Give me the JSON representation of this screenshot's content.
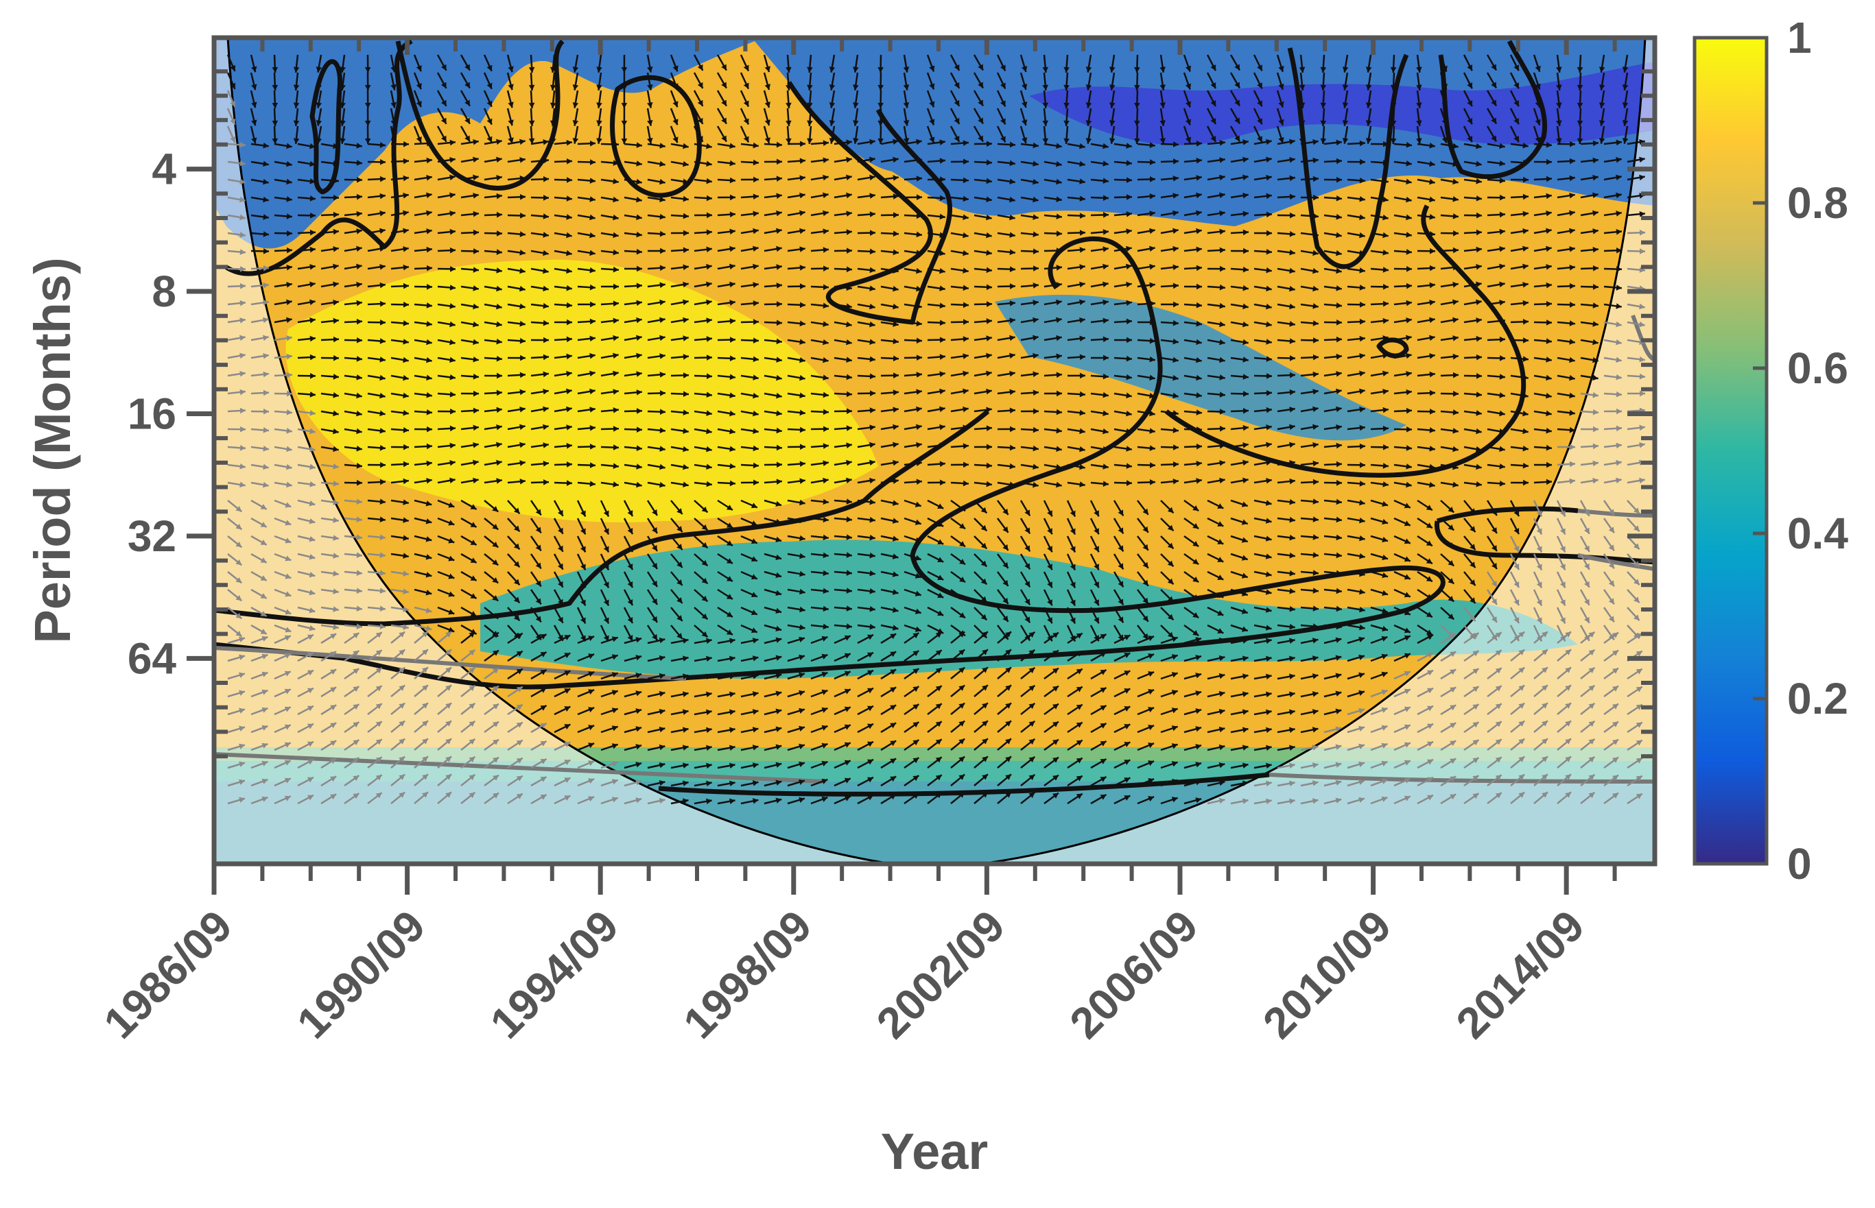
{
  "chart_data": {
    "type": "heatmap",
    "subtype": "wavelet-coherence",
    "title": "",
    "xlabel": "Year",
    "ylabel": "Period (Months)",
    "x_tick_labels": [
      "1986/09",
      "1990/09",
      "1994/09",
      "1998/09",
      "2002/09",
      "2006/09",
      "2010/09",
      "2014/09"
    ],
    "x_tick_values": [
      1986.67,
      1990.67,
      1994.67,
      1998.67,
      2002.67,
      2006.67,
      2010.67,
      2014.67
    ],
    "xlim": [
      1986.67,
      2016.5
    ],
    "y_scale": "log2",
    "y_tick_labels": [
      "4",
      "8",
      "16",
      "32",
      "64"
    ],
    "y_tick_values": [
      4,
      8,
      16,
      32,
      64
    ],
    "ylim": [
      1.9,
      205
    ],
    "y_reversed": true,
    "colorbar": {
      "ticks": [
        0,
        0.2,
        0.4,
        0.6,
        0.8,
        1
      ],
      "tick_labels": [
        "0",
        "0.2",
        "0.4",
        "0.6",
        "0.8",
        "1"
      ],
      "range": [
        0,
        1
      ],
      "colormap": "parula",
      "colors": [
        "#352a87",
        "#0f5cdd",
        "#1481d6",
        "#06a4ca",
        "#2eb7a4",
        "#87bf77",
        "#d1bb59",
        "#fec832",
        "#f9fb0e"
      ]
    },
    "cone_of_influence": true,
    "significance_contours": true,
    "phase_arrows": true,
    "grid": false,
    "legend": "none"
  }
}
